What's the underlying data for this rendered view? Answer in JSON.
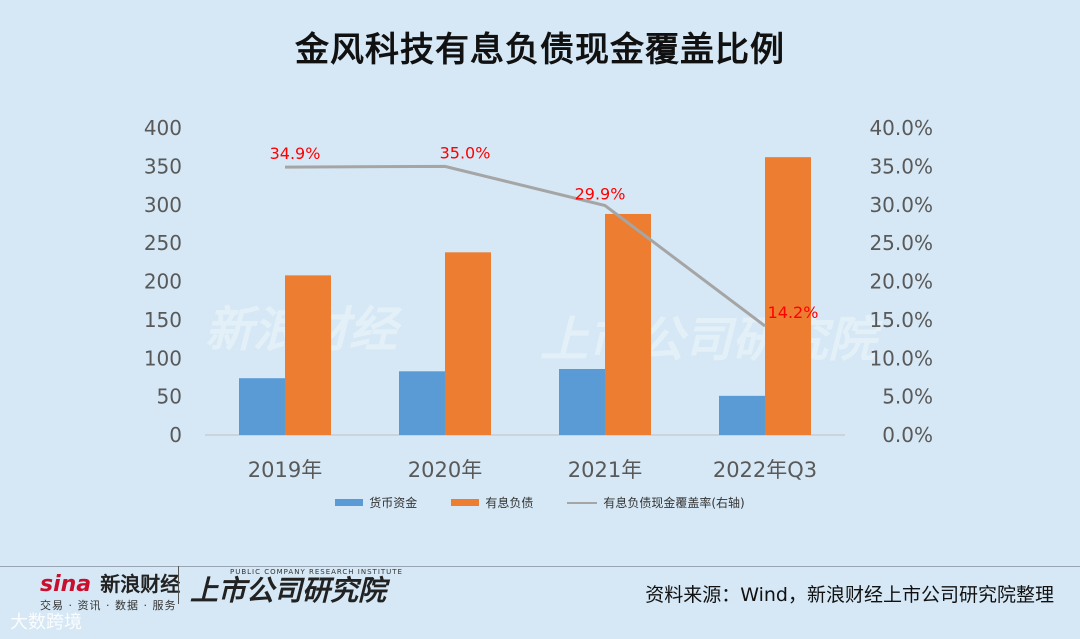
{
  "title": "金风科技有息负债现金覆盖比例",
  "chart_data": {
    "type": "bar",
    "categories": [
      "2019年",
      "2020年",
      "2021年",
      "2022年Q3"
    ],
    "series": [
      {
        "name": "货币资金",
        "type": "bar",
        "axis": "left",
        "color": "#5b9bd5",
        "values": [
          74,
          83,
          86,
          51
        ]
      },
      {
        "name": "有息负债",
        "type": "bar",
        "axis": "left",
        "color": "#ed7d31",
        "values": [
          208,
          238,
          288,
          362
        ]
      },
      {
        "name": "有息负债现金覆盖率(右轴)",
        "type": "line",
        "axis": "right",
        "color": "#a5a5a5",
        "values": [
          34.9,
          35.0,
          29.9,
          14.2
        ],
        "labels": [
          "34.9%",
          "35.0%",
          "29.9%",
          "14.2%"
        ],
        "label_color": "#ff0000"
      }
    ],
    "ylim": [
      0,
      400
    ],
    "y_ticks": [
      "0",
      "50",
      "100",
      "150",
      "200",
      "250",
      "300",
      "350",
      "400"
    ],
    "y2lim": [
      0,
      40
    ],
    "y2_ticks": [
      "0.0%",
      "5.0%",
      "10.0%",
      "15.0%",
      "20.0%",
      "25.0%",
      "30.0%",
      "35.0%",
      "40.0%"
    ],
    "grid": false,
    "legend_position": "bottom"
  },
  "footer": {
    "sina_brand": "sina",
    "sina_cn": "新浪财经",
    "sina_sub": "交易 · 资讯 · 数据 · 服务",
    "institute_en": "PUBLIC COMPANY RESEARCH INSTITUTE",
    "institute_cn": "上市公司研究院",
    "source": "资料来源：Wind，新浪财经上市公司研究院整理",
    "corner": "大数跨境"
  }
}
